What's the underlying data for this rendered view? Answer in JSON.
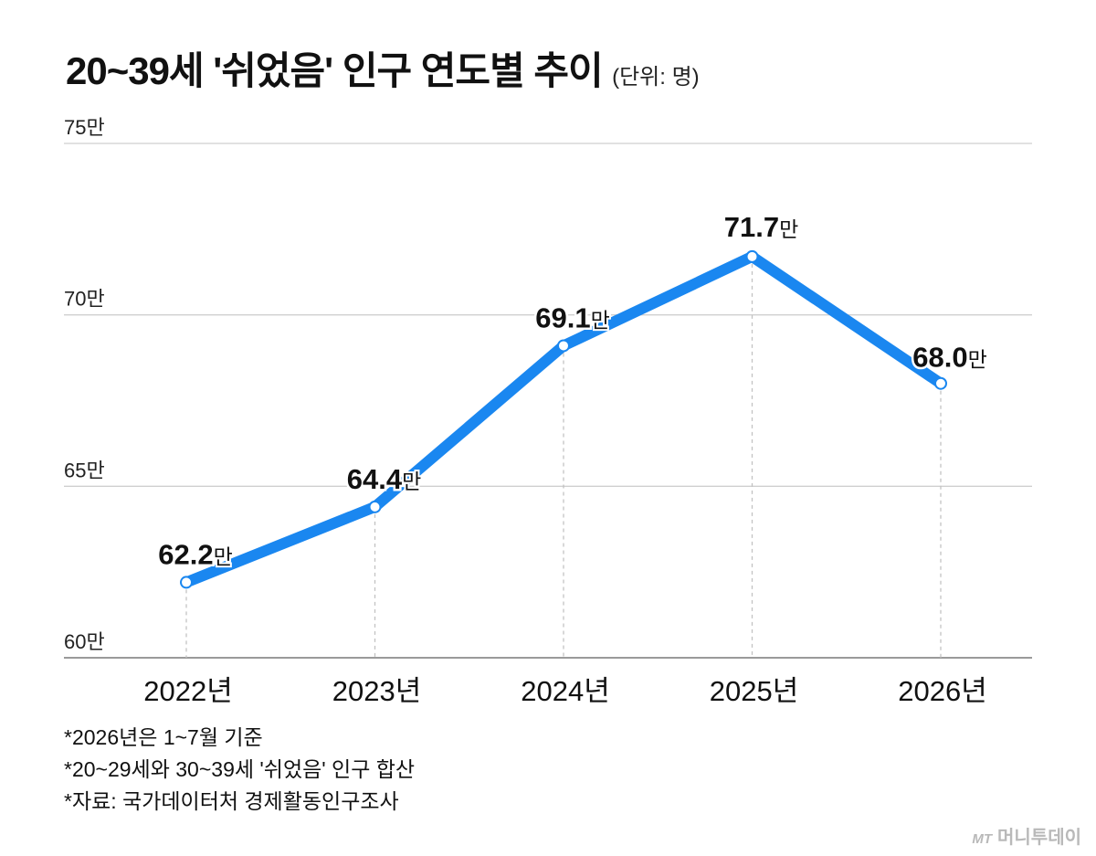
{
  "header": {
    "title": "20~39세 '쉬었음' 인구 연도별 추이",
    "unit": "(단위: 명)"
  },
  "chart_data": {
    "type": "line",
    "title": "20~39세 '쉬었음' 인구 연도별 추이",
    "categories": [
      "2022년",
      "2023년",
      "2024년",
      "2025년",
      "2026년"
    ],
    "series": [
      {
        "values": [
          62.2,
          64.4,
          69.1,
          71.7,
          68.0
        ],
        "value_labels": [
          "62.2",
          "64.4",
          "69.1",
          "71.7",
          "68.0"
        ]
      }
    ],
    "value_suffix": "만",
    "ylim": [
      60,
      75
    ],
    "yticks": [
      {
        "value": 75,
        "label": "75만"
      },
      {
        "value": 70,
        "label": "70만"
      },
      {
        "value": 65,
        "label": "65만"
      },
      {
        "value": 60,
        "label": "60만"
      }
    ],
    "grid": true,
    "line_color": "#1a87f0"
  },
  "notes": [
    "*2026년은 1~7월 기준",
    "*20~29세와 30~39세 '쉬었음' 인구 합산",
    "*자료: 국가데이터처 경제활동인구조사"
  ],
  "brand": {
    "mark": "MT",
    "name": "머니투데이"
  }
}
